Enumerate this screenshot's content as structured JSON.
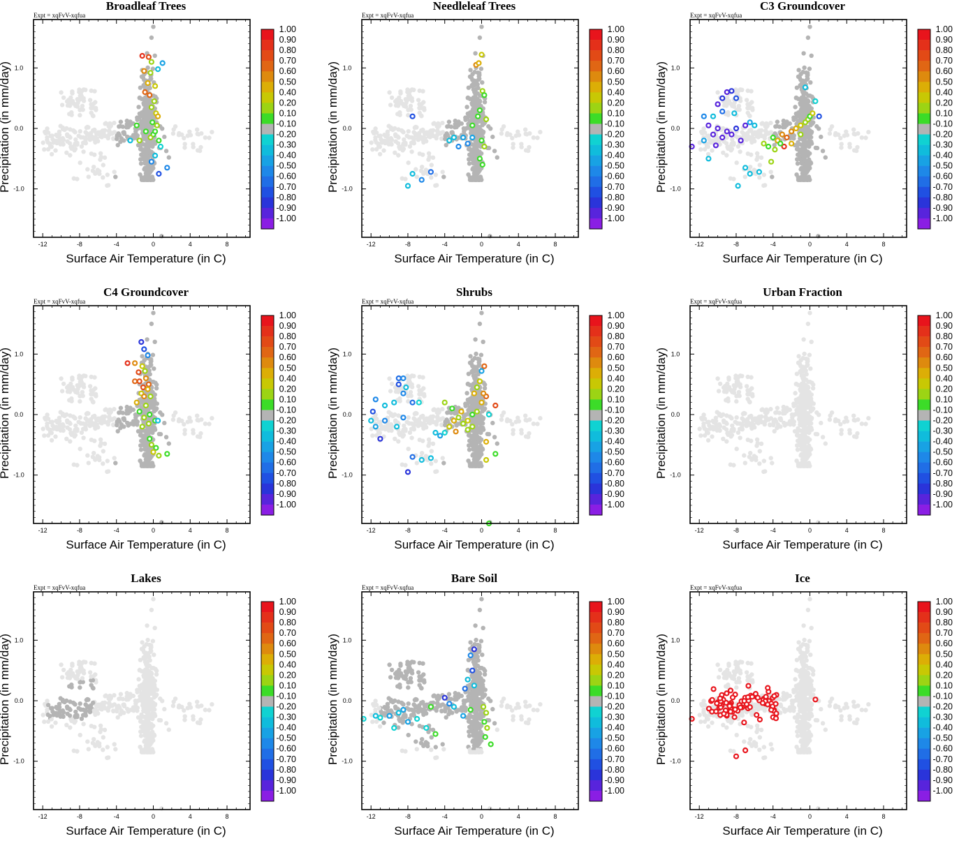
{
  "figure": {
    "expt_label": "Expt = xqFvV-xqfua",
    "xlabel": "Surface Air Temperature (in C)",
    "ylabel": "Precipitation (in mm/day)",
    "xticks": [
      -12,
      -8,
      -4,
      0,
      4,
      8
    ],
    "yticks": [
      "1.0",
      "0.0",
      "-1.0"
    ],
    "ytick_values": [
      1.0,
      0.0,
      -1.0
    ],
    "xlim": [
      -13,
      10.5
    ],
    "ylim": [
      -1.8,
      1.8
    ]
  },
  "colorbar": {
    "labels": [
      "1.00",
      "0.90",
      "0.80",
      "0.70",
      "0.60",
      "0.50",
      "0.40",
      "0.20",
      "0.10",
      "-0.10",
      "-0.20",
      "-0.30",
      "-0.40",
      "-0.50",
      "-0.60",
      "-0.70",
      "-0.80",
      "-0.90",
      "-1.00"
    ],
    "colors": [
      "#e8141c",
      "#e4301a",
      "#e24a16",
      "#e06614",
      "#de8a0e",
      "#dcae06",
      "#c8c804",
      "#9cd414",
      "#3cdc28",
      "#b4b4b4",
      "#10d2d2",
      "#10bcdc",
      "#18a2e4",
      "#1e88e8",
      "#206ee6",
      "#2050e2",
      "#2a34da",
      "#5824dc",
      "#8a1ee4"
    ]
  },
  "chart_data": [
    {
      "type": "scatter",
      "title": "Broadleaf Trees",
      "xlabel": "Surface Air Temperature (in C)",
      "ylabel": "Precipitation (in mm/day)",
      "xlim": [
        -13,
        10.5
      ],
      "ylim": [
        -1.8,
        1.8
      ],
      "pattern": "central",
      "colored_points": [
        [
          -1.2,
          1.2,
          0.95
        ],
        [
          -0.5,
          1.18,
          0.85
        ],
        [
          -0.2,
          1.1,
          0.3
        ],
        [
          -1.0,
          0.95,
          0.6
        ],
        [
          -0.3,
          0.92,
          0.2
        ],
        [
          -0.6,
          0.75,
          0.5
        ],
        [
          0.2,
          0.7,
          0.4
        ],
        [
          -0.9,
          0.6,
          0.7
        ],
        [
          -0.4,
          0.55,
          0.65
        ],
        [
          0.1,
          0.45,
          0.3
        ],
        [
          -0.2,
          0.35,
          0.2
        ],
        [
          0.3,
          0.25,
          0.4
        ],
        [
          0.5,
          0.2,
          0.5
        ],
        [
          -0.1,
          0.1,
          0.15
        ],
        [
          0.4,
          0.05,
          0.3
        ],
        [
          -0.8,
          -0.05,
          0.15
        ],
        [
          0.0,
          -0.1,
          0.1
        ],
        [
          -0.3,
          -0.15,
          0.2
        ],
        [
          0.6,
          -0.2,
          0.15
        ],
        [
          -2.5,
          -0.2,
          -0.3
        ],
        [
          -1.5,
          -0.2,
          0.2
        ],
        [
          0.8,
          -0.3,
          -0.2
        ],
        [
          -0.2,
          -0.55,
          -0.5
        ],
        [
          1.5,
          -0.65,
          -0.5
        ],
        [
          0.6,
          -0.75,
          -0.7
        ],
        [
          0.2,
          -0.45,
          -0.3
        ],
        [
          1.0,
          1.08,
          -0.45
        ],
        [
          0.5,
          0.98,
          -0.3
        ],
        [
          -1.8,
          0.05,
          0.15
        ],
        [
          0.2,
          -0.05,
          0.15
        ]
      ]
    },
    {
      "type": "scatter",
      "title": "Needleleaf Trees",
      "xlabel": "Surface Air Temperature (in C)",
      "ylabel": "Precipitation (in mm/day)",
      "xlim": [
        -13,
        10.5
      ],
      "ylim": [
        -1.8,
        1.8
      ],
      "pattern": "central",
      "colored_points": [
        [
          0.0,
          1.22,
          0.4
        ],
        [
          -0.6,
          1.05,
          0.6
        ],
        [
          -0.3,
          1.08,
          0.5
        ],
        [
          0.1,
          0.62,
          0.2
        ],
        [
          0.3,
          0.55,
          0.15
        ],
        [
          -0.2,
          0.3,
          0.15
        ],
        [
          -0.4,
          0.2,
          0.15
        ],
        [
          0.5,
          0.15,
          0.3
        ],
        [
          -1.0,
          0.05,
          0.15
        ],
        [
          -2.0,
          -0.15,
          -0.4
        ],
        [
          -3.5,
          -0.2,
          -0.3
        ],
        [
          -2.5,
          -0.3,
          -0.5
        ],
        [
          -1.5,
          -0.25,
          -0.5
        ],
        [
          -1.0,
          -0.15,
          -0.45
        ],
        [
          0.0,
          -0.2,
          0.15
        ],
        [
          0.3,
          -0.3,
          0.2
        ],
        [
          -0.2,
          -0.5,
          0.15
        ],
        [
          0.1,
          -0.6,
          0.15
        ],
        [
          -7.5,
          0.2,
          -0.7
        ],
        [
          -7.5,
          -0.75,
          -0.3
        ],
        [
          -8.0,
          -0.95,
          -0.3
        ],
        [
          -6.5,
          -0.85,
          -0.5
        ],
        [
          -5.5,
          -0.72,
          -0.6
        ],
        [
          -3.0,
          -0.15,
          -0.3
        ]
      ]
    },
    {
      "type": "scatter",
      "title": "C3 Groundcover",
      "xlabel": "Surface Air Temperature (in C)",
      "ylabel": "Precipitation (in mm/day)",
      "xlim": [
        -13,
        10.5
      ],
      "ylim": [
        -1.8,
        1.8
      ],
      "pattern": "central",
      "colored_points": [
        [
          -9.0,
          0.6,
          -0.9
        ],
        [
          -8.5,
          0.62,
          -0.85
        ],
        [
          -9.5,
          0.5,
          -0.8
        ],
        [
          -8.0,
          0.5,
          -0.7
        ],
        [
          -10.0,
          0.4,
          -0.9
        ],
        [
          -9.5,
          0.28,
          -0.6
        ],
        [
          -8.2,
          0.25,
          -0.3
        ],
        [
          -11.5,
          0.2,
          -0.5
        ],
        [
          -10.5,
          0.2,
          -0.3
        ],
        [
          -11,
          0.05,
          -0.9
        ],
        [
          -10,
          0.0,
          -0.95
        ],
        [
          -9,
          -0.05,
          -0.9
        ],
        [
          -8,
          0.0,
          -0.85
        ],
        [
          -7,
          0.05,
          -0.9
        ],
        [
          -9.5,
          -0.15,
          -0.9
        ],
        [
          -10.5,
          -0.1,
          -0.95
        ],
        [
          -8.5,
          -0.1,
          -0.9
        ],
        [
          -7.5,
          -0.2,
          -0.9
        ],
        [
          -11.5,
          -0.2,
          -0.4
        ],
        [
          -12.8,
          -0.3,
          -0.9
        ],
        [
          -10.2,
          -0.28,
          -0.95
        ],
        [
          -11,
          -0.5,
          -0.3
        ],
        [
          -6.5,
          0.1,
          -0.4
        ],
        [
          -6,
          0.05,
          -0.3
        ],
        [
          -7,
          -0.65,
          -0.3
        ],
        [
          -7.8,
          -0.95,
          -0.3
        ],
        [
          -6.5,
          -0.75,
          -0.3
        ],
        [
          -5.5,
          -0.72,
          -0.3
        ],
        [
          -5.0,
          -0.25,
          0.2
        ],
        [
          -4.5,
          -0.3,
          0.15
        ],
        [
          -4.0,
          -0.15,
          0.1
        ],
        [
          -3.5,
          -0.2,
          0.5
        ],
        [
          -3.0,
          -0.1,
          0.6
        ],
        [
          -2.5,
          -0.15,
          0.7
        ],
        [
          -2.0,
          -0.05,
          0.6
        ],
        [
          -1.5,
          0.0,
          0.5
        ],
        [
          -1.0,
          0.05,
          0.4
        ],
        [
          -0.5,
          0.1,
          0.3
        ],
        [
          -0.2,
          0.15,
          0.2
        ],
        [
          0.0,
          0.2,
          0.15
        ],
        [
          0.3,
          0.25,
          0.4
        ],
        [
          -3.8,
          -0.35,
          0.3
        ],
        [
          -2.8,
          -0.3,
          0.95
        ],
        [
          -4.2,
          -0.55,
          0.3
        ],
        [
          -3.2,
          -0.25,
          0.15
        ],
        [
          -0.5,
          0.68,
          -0.3
        ],
        [
          0.6,
          0.45,
          -0.2
        ],
        [
          1.0,
          0.2,
          -0.7
        ],
        [
          -2.0,
          -0.25,
          0.45
        ],
        [
          -1.0,
          -0.1,
          0.2
        ]
      ]
    },
    {
      "type": "scatter",
      "title": "C4 Groundcover",
      "xlabel": "Surface Air Temperature (in C)",
      "ylabel": "Precipitation (in mm/day)",
      "xlim": [
        -13,
        10.5
      ],
      "ylim": [
        -1.8,
        1.8
      ],
      "pattern": "central",
      "colored_points": [
        [
          -1.3,
          1.2,
          -0.85
        ],
        [
          -1.0,
          1.08,
          -0.7
        ],
        [
          -0.6,
          0.98,
          -0.5
        ],
        [
          -2.0,
          0.85,
          0.6
        ],
        [
          -2.8,
          0.85,
          0.95
        ],
        [
          -1.2,
          0.8,
          0.4
        ],
        [
          -0.9,
          0.72,
          0.3
        ],
        [
          -0.8,
          0.6,
          0.6
        ],
        [
          -1.5,
          0.55,
          0.85
        ],
        [
          -0.5,
          0.5,
          0.7
        ],
        [
          -2.0,
          0.55,
          0.7
        ],
        [
          -1.1,
          0.45,
          0.8
        ],
        [
          -0.6,
          0.42,
          0.5
        ],
        [
          -1.3,
          0.35,
          0.4
        ],
        [
          -0.3,
          0.3,
          0.3
        ],
        [
          -1.8,
          0.2,
          0.5
        ],
        [
          -0.8,
          0.15,
          0.2
        ],
        [
          -1.5,
          0.05,
          0.15
        ],
        [
          -0.4,
          0.0,
          0.15
        ],
        [
          -1.0,
          -0.05,
          0.2
        ],
        [
          0.2,
          -0.1,
          0.15
        ],
        [
          -0.5,
          -0.15,
          0.2
        ],
        [
          -1.2,
          -0.2,
          0.3
        ],
        [
          0.5,
          -0.1,
          -0.3
        ],
        [
          -0.4,
          -0.4,
          0.15
        ],
        [
          -0.2,
          -0.5,
          0.2
        ],
        [
          0.3,
          -0.55,
          0.15
        ],
        [
          0.0,
          -0.62,
          0.4
        ],
        [
          0.6,
          -0.68,
          0.3
        ],
        [
          1.5,
          -0.65,
          0.15
        ],
        [
          -1.0,
          0.3,
          0.6
        ],
        [
          -1.6,
          0.7,
          0.8
        ]
      ]
    },
    {
      "type": "scatter",
      "title": "Shrubs",
      "xlabel": "Surface Air Temperature (in C)",
      "ylabel": "Precipitation (in mm/day)",
      "xlim": [
        -13,
        10.5
      ],
      "ylim": [
        -1.8,
        1.8
      ],
      "pattern": "central",
      "colored_points": [
        [
          -9,
          0.6,
          -0.6
        ],
        [
          -8.5,
          0.6,
          -0.5
        ],
        [
          -9,
          0.5,
          -0.7
        ],
        [
          -8.2,
          0.45,
          -0.3
        ],
        [
          -8.5,
          0.35,
          -0.5
        ],
        [
          -7.5,
          0.2,
          -0.6
        ],
        [
          -11.5,
          0.25,
          -0.5
        ],
        [
          -10.5,
          0.15,
          -0.3
        ],
        [
          -11.8,
          0.05,
          -0.7
        ],
        [
          -9.5,
          0.2,
          -0.3
        ],
        [
          -10.5,
          -0.1,
          -0.5
        ],
        [
          -11.5,
          -0.2,
          -0.4
        ],
        [
          -12,
          -0.1,
          -0.3
        ],
        [
          -11,
          -0.4,
          -0.8
        ],
        [
          -8.5,
          -0.05,
          -0.5
        ],
        [
          -9.2,
          -0.2,
          -0.3
        ],
        [
          -6.8,
          0.2,
          -0.2
        ],
        [
          -8,
          -0.95,
          -0.8
        ],
        [
          -7.5,
          -0.7,
          -0.6
        ],
        [
          -6.5,
          -0.75,
          -0.3
        ],
        [
          -5.5,
          -0.72,
          -0.3
        ],
        [
          -4,
          0.2,
          0.3
        ],
        [
          -5,
          -0.3,
          -0.3
        ],
        [
          -4.5,
          -0.35,
          -0.4
        ],
        [
          -4,
          -0.3,
          -0.2
        ],
        [
          -3.5,
          -0.2,
          0.4
        ],
        [
          -3,
          -0.1,
          0.5
        ],
        [
          -2.5,
          -0.05,
          0.3
        ],
        [
          -2.0,
          -0.15,
          0.2
        ],
        [
          -1.5,
          -0.1,
          0.4
        ],
        [
          -1.0,
          0.0,
          0.15
        ],
        [
          -0.5,
          0.05,
          0.2
        ],
        [
          0.0,
          0.2,
          0.5
        ],
        [
          0.5,
          0.3,
          0.7
        ],
        [
          1.5,
          0.15,
          0.85
        ],
        [
          -0.2,
          0.55,
          0.4
        ],
        [
          -0.5,
          0.45,
          0.2
        ],
        [
          0.3,
          0.8,
          0.7
        ],
        [
          0.0,
          0.72,
          -0.4
        ],
        [
          -0.8,
          0.35,
          0.5
        ],
        [
          -1.5,
          -0.25,
          0.3
        ],
        [
          -2.8,
          -0.28,
          0.6
        ],
        [
          0.8,
          0.0,
          -0.2
        ],
        [
          0.5,
          -0.45,
          0.5
        ],
        [
          0.5,
          -0.75,
          0.4
        ],
        [
          1.5,
          -0.65,
          0.15
        ],
        [
          0.8,
          -1.8,
          0.15
        ],
        [
          -3.2,
          0.1,
          0.15
        ],
        [
          -2.2,
          0.05,
          0.45
        ],
        [
          -1.0,
          -0.2,
          0.2
        ],
        [
          0.2,
          0.35,
          0.6
        ]
      ]
    },
    {
      "type": "scatter",
      "title": "Urban Fraction",
      "xlabel": "Surface Air Temperature (in C)",
      "ylabel": "Precipitation (in mm/day)",
      "xlim": [
        -13,
        10.5
      ],
      "ylim": [
        -1.8,
        1.8
      ],
      "pattern": "none",
      "colored_points": []
    },
    {
      "type": "scatter",
      "title": "Lakes",
      "xlabel": "Surface Air Temperature (in C)",
      "ylabel": "Precipitation (in mm/day)",
      "xlim": [
        -13,
        10.5
      ],
      "ylim": [
        -1.8,
        1.8
      ],
      "pattern": "lakes",
      "colored_points": []
    },
    {
      "type": "scatter",
      "title": "Bare Soil",
      "xlabel": "Surface Air Temperature (in C)",
      "ylabel": "Precipitation (in mm/day)",
      "xlim": [
        -13,
        10.5
      ],
      "ylim": [
        -1.8,
        1.8
      ],
      "pattern": "broad",
      "colored_points": [
        [
          -0.8,
          0.85,
          -0.8
        ],
        [
          -1.2,
          0.75,
          -0.5
        ],
        [
          -1.0,
          0.5,
          -0.7
        ],
        [
          -1.5,
          0.35,
          -0.3
        ],
        [
          -1.8,
          0.2,
          -0.6
        ],
        [
          -0.8,
          0.25,
          -0.3
        ],
        [
          -12.8,
          -0.3,
          -0.2
        ],
        [
          -11.5,
          -0.25,
          -0.3
        ],
        [
          -11,
          -0.28,
          -0.2
        ],
        [
          -10,
          -0.25,
          -0.4
        ],
        [
          -9,
          -0.2,
          -0.3
        ],
        [
          -8.5,
          -0.15,
          -0.4
        ],
        [
          -9.5,
          -0.45,
          -0.2
        ],
        [
          -8,
          -0.35,
          -0.4
        ],
        [
          -7,
          -0.3,
          -0.25
        ],
        [
          -6,
          -0.45,
          -0.2
        ],
        [
          -5.5,
          -0.1,
          0.15
        ],
        [
          -5.0,
          -0.55,
          0.15
        ],
        [
          -4,
          0.05,
          -0.8
        ],
        [
          -3.5,
          -0.05,
          -0.5
        ],
        [
          -3,
          -0.1,
          -0.3
        ],
        [
          0.2,
          -0.1,
          0.3
        ],
        [
          0.5,
          -0.2,
          0.2
        ],
        [
          0.3,
          -0.35,
          0.15
        ],
        [
          0.6,
          -0.45,
          0.3
        ],
        [
          0.4,
          -0.6,
          0.15
        ],
        [
          1.0,
          -0.72,
          0.15
        ],
        [
          -1.2,
          -0.15,
          0.15
        ],
        [
          -2,
          -0.25,
          -0.4
        ]
      ]
    },
    {
      "type": "scatter",
      "title": "Ice",
      "xlabel": "Surface Air Temperature (in C)",
      "ylabel": "Precipitation (in mm/day)",
      "xlim": [
        -13,
        10.5
      ],
      "ylim": [
        -1.8,
        1.8
      ],
      "pattern": "ice",
      "colored_points": []
    }
  ]
}
